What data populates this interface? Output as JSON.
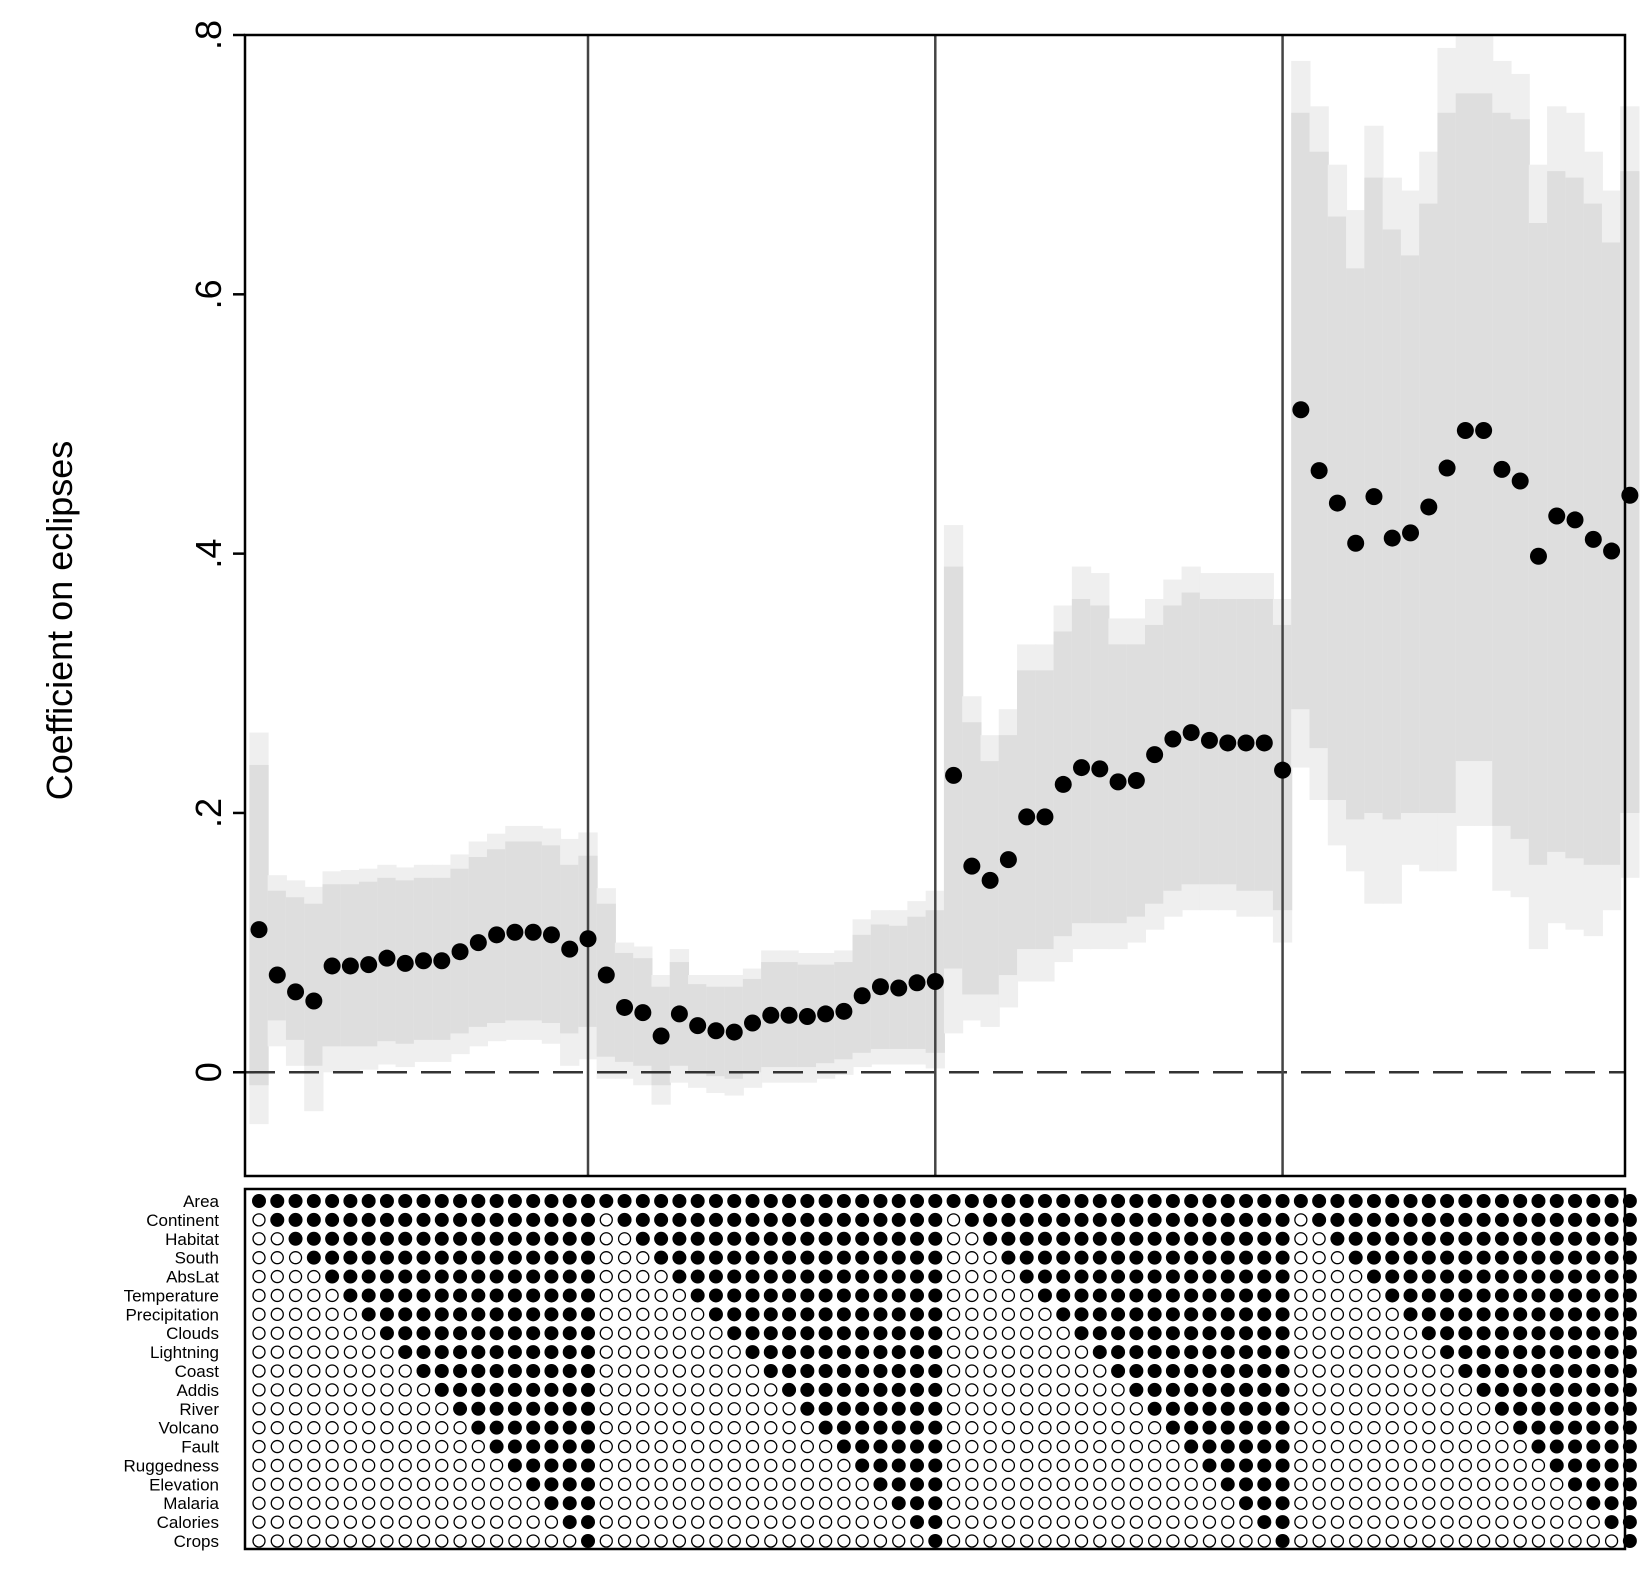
{
  "chart_data": {
    "type": "scatter",
    "title": "",
    "xlabel": "",
    "ylabel": "Coefficient on eclipses",
    "ylim": [
      -0.08,
      0.8
    ],
    "yticks": [
      {
        "value": 0,
        "label": "0"
      },
      {
        "value": 0.2,
        "label": ".2"
      },
      {
        "value": 0.4,
        "label": ".4"
      },
      {
        "value": 0.6,
        "label": ".6"
      },
      {
        "value": 0.8,
        "label": ".8"
      }
    ],
    "reference_line": {
      "value": 0,
      "style": "dashed"
    },
    "grid": false,
    "panels": 4,
    "points_per_panel": 19,
    "colors": {
      "point": "#000000",
      "ci_inner": "#dedede",
      "ci_outer": "#efefef",
      "divider": "#444444"
    },
    "coefficients": [
      0.11,
      0.075,
      0.062,
      0.055,
      0.082,
      0.082,
      0.083,
      0.088,
      0.084,
      0.086,
      0.086,
      0.093,
      0.1,
      0.106,
      0.108,
      0.108,
      0.106,
      0.095,
      0.103,
      0.075,
      0.05,
      0.046,
      0.028,
      0.045,
      0.036,
      0.032,
      0.031,
      0.038,
      0.044,
      0.044,
      0.043,
      0.045,
      0.047,
      0.059,
      0.066,
      0.065,
      0.069,
      0.07,
      0.229,
      0.159,
      0.148,
      0.164,
      0.197,
      0.197,
      0.222,
      0.235,
      0.234,
      0.224,
      0.225,
      0.245,
      0.257,
      0.262,
      0.256,
      0.254,
      0.254,
      0.254,
      0.233,
      0.511,
      0.464,
      0.439,
      0.408,
      0.444,
      0.412,
      0.416,
      0.436,
      0.466,
      0.495,
      0.495,
      0.465,
      0.456,
      0.398,
      0.429,
      0.426,
      0.411,
      0.402,
      0.445
    ],
    "ci_inner_low": [
      -0.01,
      0.04,
      0.025,
      0.005,
      0.02,
      0.02,
      0.02,
      0.024,
      0.022,
      0.025,
      0.025,
      0.03,
      0.035,
      0.038,
      0.04,
      0.04,
      0.038,
      0.03,
      0.035,
      0.012,
      0.008,
      0.005,
      -0.01,
      0.005,
      0.0,
      -0.003,
      -0.005,
      0.0,
      0.004,
      0.004,
      0.004,
      0.007,
      0.01,
      0.015,
      0.018,
      0.018,
      0.018,
      0.015,
      0.08,
      0.06,
      0.06,
      0.075,
      0.095,
      0.095,
      0.105,
      0.115,
      0.115,
      0.115,
      0.12,
      0.13,
      0.14,
      0.145,
      0.145,
      0.145,
      0.14,
      0.14,
      0.125,
      0.28,
      0.25,
      0.21,
      0.195,
      0.2,
      0.195,
      0.2,
      0.2,
      0.2,
      0.24,
      0.24,
      0.19,
      0.18,
      0.16,
      0.17,
      0.165,
      0.16,
      0.16,
      0.2
    ],
    "ci_inner_high": [
      0.237,
      0.14,
      0.135,
      0.13,
      0.145,
      0.145,
      0.147,
      0.15,
      0.148,
      0.15,
      0.15,
      0.157,
      0.166,
      0.172,
      0.178,
      0.178,
      0.175,
      0.16,
      0.167,
      0.13,
      0.092,
      0.088,
      0.066,
      0.085,
      0.068,
      0.066,
      0.066,
      0.072,
      0.085,
      0.085,
      0.083,
      0.083,
      0.085,
      0.106,
      0.114,
      0.113,
      0.12,
      0.125,
      0.39,
      0.27,
      0.24,
      0.26,
      0.31,
      0.31,
      0.34,
      0.365,
      0.36,
      0.33,
      0.33,
      0.345,
      0.36,
      0.37,
      0.365,
      0.365,
      0.365,
      0.365,
      0.345,
      0.74,
      0.71,
      0.66,
      0.62,
      0.69,
      0.65,
      0.63,
      0.67,
      0.74,
      0.755,
      0.755,
      0.74,
      0.735,
      0.655,
      0.695,
      0.69,
      0.67,
      0.64,
      0.695
    ],
    "ci_outer_low": [
      -0.04,
      0.02,
      0.005,
      -0.03,
      0.0,
      0.0,
      0.002,
      0.006,
      0.004,
      0.008,
      0.008,
      0.014,
      0.02,
      0.024,
      0.025,
      0.025,
      0.022,
      0.005,
      0.01,
      -0.005,
      -0.005,
      -0.01,
      -0.025,
      -0.008,
      -0.012,
      -0.016,
      -0.018,
      -0.012,
      -0.008,
      -0.008,
      -0.008,
      -0.005,
      -0.002,
      0.004,
      0.006,
      0.006,
      0.006,
      0.003,
      0.03,
      0.04,
      0.035,
      0.05,
      0.07,
      0.07,
      0.085,
      0.095,
      0.095,
      0.095,
      0.1,
      0.11,
      0.12,
      0.125,
      0.125,
      0.125,
      0.12,
      0.12,
      0.1,
      0.235,
      0.21,
      0.175,
      0.155,
      0.13,
      0.13,
      0.16,
      0.155,
      0.155,
      0.19,
      0.19,
      0.14,
      0.135,
      0.095,
      0.115,
      0.11,
      0.105,
      0.125,
      0.15
    ],
    "ci_outer_high": [
      0.262,
      0.152,
      0.148,
      0.143,
      0.155,
      0.156,
      0.157,
      0.16,
      0.158,
      0.16,
      0.16,
      0.168,
      0.178,
      0.184,
      0.19,
      0.19,
      0.188,
      0.18,
      0.185,
      0.142,
      0.1,
      0.097,
      0.075,
      0.095,
      0.075,
      0.075,
      0.075,
      0.08,
      0.094,
      0.094,
      0.092,
      0.092,
      0.094,
      0.118,
      0.125,
      0.125,
      0.132,
      0.14,
      0.422,
      0.29,
      0.26,
      0.28,
      0.33,
      0.33,
      0.36,
      0.39,
      0.385,
      0.35,
      0.35,
      0.365,
      0.38,
      0.39,
      0.385,
      0.385,
      0.385,
      0.385,
      0.365,
      0.78,
      0.745,
      0.7,
      0.665,
      0.73,
      0.69,
      0.68,
      0.71,
      0.79,
      0.8,
      0.8,
      0.78,
      0.77,
      0.7,
      0.745,
      0.74,
      0.71,
      0.68,
      0.745
    ],
    "controls": [
      "Area",
      "Continent",
      "Habitat",
      "South",
      "AbsLat",
      "Temperature",
      "Precipitation",
      "Clouds",
      "Lightning",
      "Coast",
      "Addis",
      "River",
      "Volcano",
      "Fault",
      "Ruggedness",
      "Elevation",
      "Malaria",
      "Calories",
      "Crops"
    ]
  }
}
